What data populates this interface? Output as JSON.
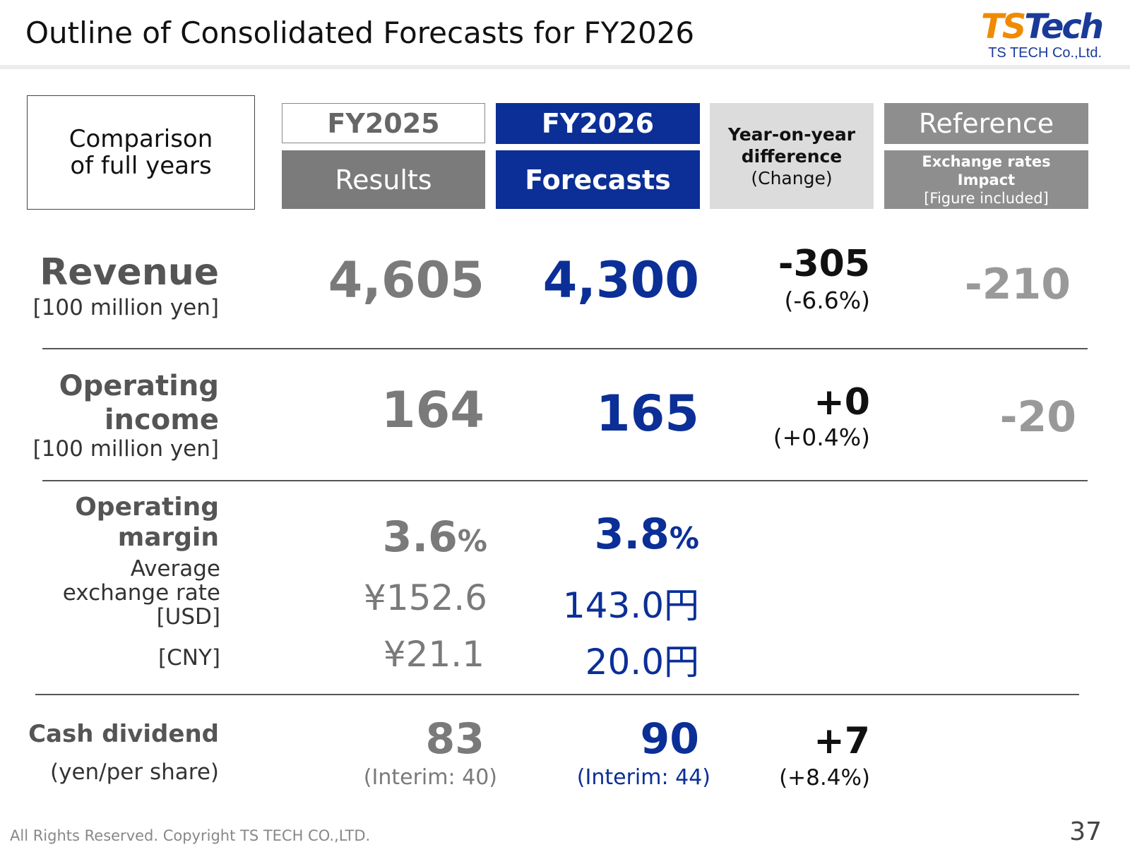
{
  "header": {
    "title": "Outline of Consolidated Forecasts for FY2026",
    "logo_mark_ts": "TS",
    "logo_mark_tech": "Tech",
    "logo_company": "TS TECH Co.,Ltd."
  },
  "columns": {
    "comparison_label": "Comparison of full years",
    "fy2025": "FY2025",
    "results": "Results",
    "fy2026": "FY2026",
    "forecasts": "Forecasts",
    "yoy_line1": "Year-on-year",
    "yoy_line2": "difference",
    "yoy_line3": "(Change)",
    "reference": "Reference",
    "ref_line1": "Exchange rates",
    "ref_line2": "Impact",
    "ref_line3": "[Figure included]"
  },
  "rows": {
    "revenue": {
      "label": "Revenue",
      "unit": "[100 million yen]",
      "fy2025": "4,605",
      "fy2026": "4,300",
      "yoy": "-305",
      "yoy_pct": "(-6.6%)",
      "reference": "-210"
    },
    "operating_income": {
      "label_line1": "Operating",
      "label_line2": "income",
      "unit": "[100 million yen]",
      "fy2025": "164",
      "fy2026": "165",
      "yoy": "+0",
      "yoy_pct": "(+0.4%)",
      "reference": "-20"
    },
    "operating_margin": {
      "label_line1": "Operating",
      "label_line2": "margin",
      "fy2025": "3.6",
      "fy2026": "3.8",
      "pct_sign": "%"
    },
    "exchange_rate": {
      "label_line1": "Average",
      "label_line2": "exchange rate",
      "label_line3": "[USD]",
      "usd_fy2025": "¥152.6",
      "usd_fy2026": "143.0円",
      "cny_label": "[CNY]",
      "cny_fy2025": "¥21.1",
      "cny_fy2026": "20.0円"
    },
    "dividend": {
      "label": "Cash dividend",
      "unit": "(yen/per share)",
      "fy2025": "83",
      "fy2025_interim": "(Interim: 40)",
      "fy2026": "90",
      "fy2026_interim": "(Interim: 44)",
      "yoy": "+7",
      "yoy_pct": "(+8.4%)"
    }
  },
  "footer": {
    "copyright": "All Rights Reserved. Copyright TS TECH CO.,LTD.",
    "page_number": "37"
  },
  "colors": {
    "navy": "#0b2f96",
    "results_gray": "#7b7b7b",
    "reference_gray": "#8e8e8e",
    "logo_orange": "#f08a00"
  }
}
